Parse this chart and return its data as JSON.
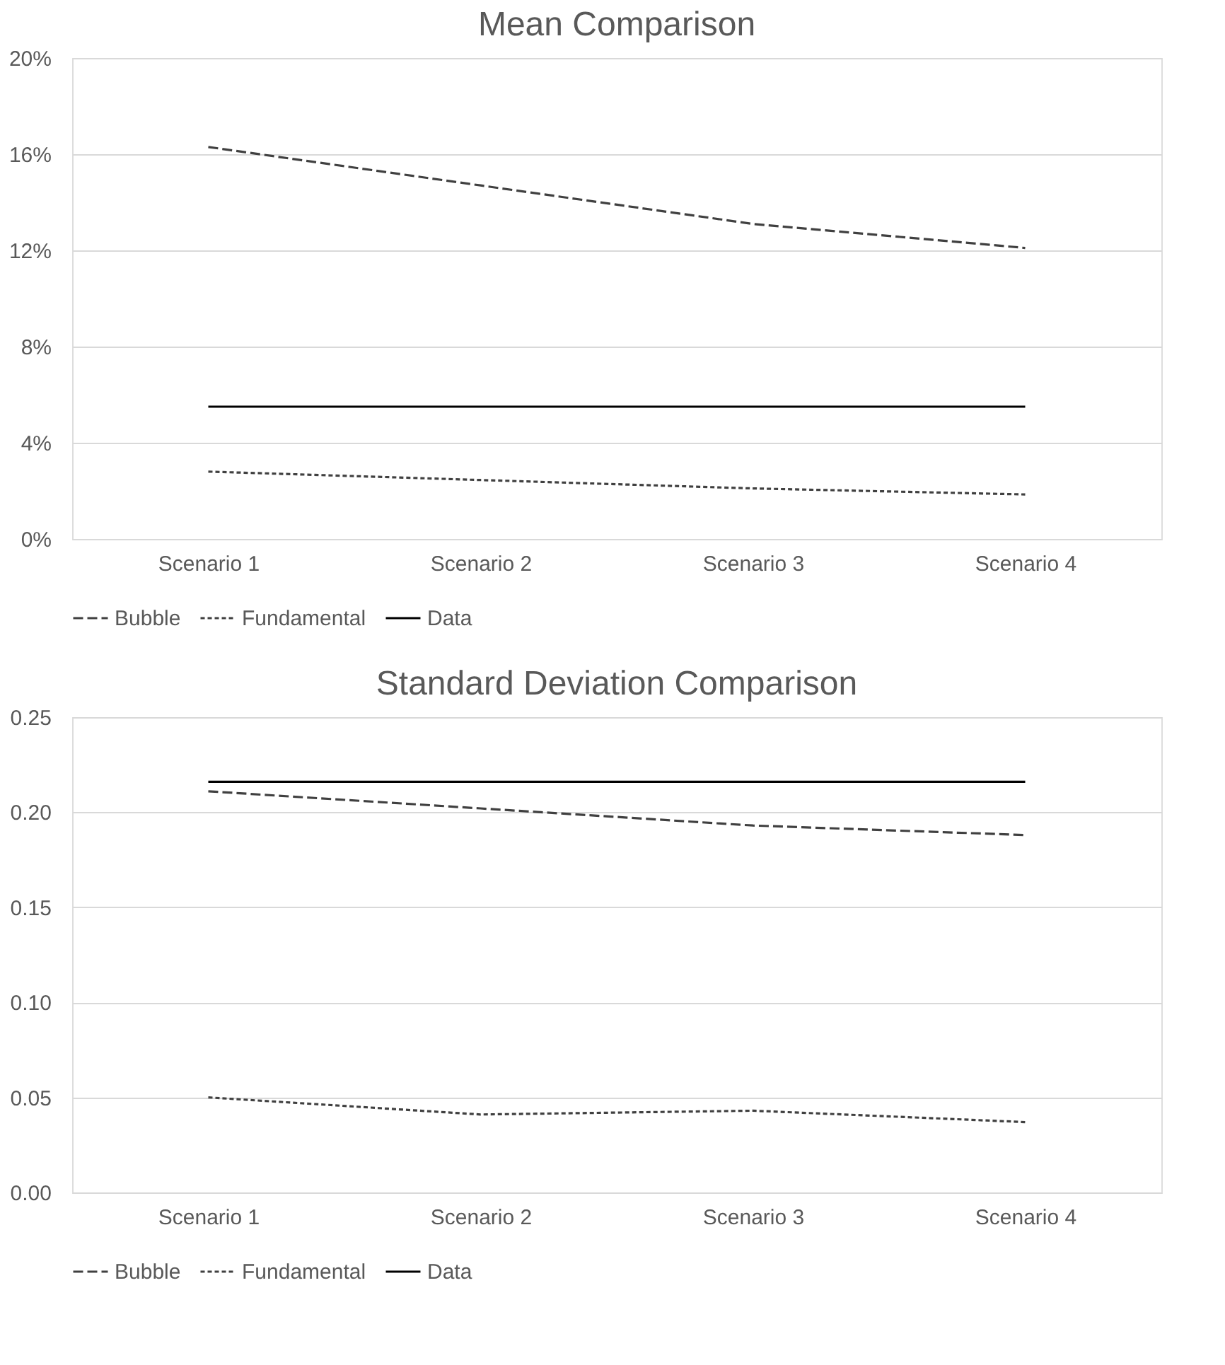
{
  "chart_data": [
    {
      "type": "line",
      "title": "Mean Comparison",
      "categories": [
        "Scenario 1",
        "Scenario 2",
        "Scenario 3",
        "Scenario 4"
      ],
      "series": [
        {
          "name": "Bubble",
          "color": "#404040",
          "line_style": "dashed",
          "values": [
            16.3,
            14.7,
            13.1,
            12.1
          ]
        },
        {
          "name": "Fundamental",
          "color": "#404040",
          "line_style": "dotted",
          "values": [
            2.8,
            2.45,
            2.1,
            1.85
          ]
        },
        {
          "name": "Data",
          "color": "#000000",
          "line_style": "solid",
          "values": [
            5.5,
            5.5,
            5.5,
            5.5
          ]
        }
      ],
      "ylim": [
        0,
        20
      ],
      "yticks": [
        {
          "value": 0,
          "label": "0%"
        },
        {
          "value": 4,
          "label": "4%"
        },
        {
          "value": 8,
          "label": "8%"
        },
        {
          "value": 12,
          "label": "12%"
        },
        {
          "value": 16,
          "label": "16%"
        },
        {
          "value": 20,
          "label": "20%"
        }
      ],
      "grid": "y",
      "legend": "bottom",
      "marker": "none"
    },
    {
      "type": "line",
      "title": "Standard Deviation Comparison",
      "categories": [
        "Scenario 1",
        "Scenario 2",
        "Scenario 3",
        "Scenario 4"
      ],
      "series": [
        {
          "name": "Bubble",
          "color": "#404040",
          "line_style": "dashed",
          "values": [
            0.211,
            0.202,
            0.193,
            0.188
          ]
        },
        {
          "name": "Fundamental",
          "color": "#404040",
          "line_style": "dotted",
          "values": [
            0.05,
            0.041,
            0.043,
            0.037
          ]
        },
        {
          "name": "Data",
          "color": "#000000",
          "line_style": "solid",
          "values": [
            0.216,
            0.216,
            0.216,
            0.216
          ]
        }
      ],
      "ylim": [
        0,
        0.25
      ],
      "yticks": [
        {
          "value": 0,
          "label": "0.00"
        },
        0.05,
        {
          "value": 0.1,
          "label": "0.10"
        },
        0.15,
        {
          "value": 0.2,
          "label": "0.20"
        },
        0.25
      ],
      "grid": "y",
      "legend": "bottom",
      "marker": "none"
    }
  ]
}
